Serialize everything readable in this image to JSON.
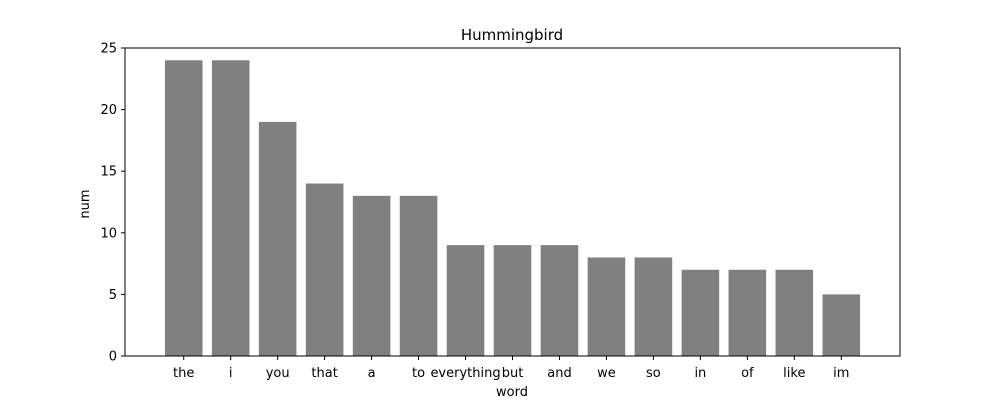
{
  "chart_data": {
    "type": "bar",
    "title": "Hummingbird",
    "xlabel": "word",
    "ylabel": "num",
    "categories": [
      "the",
      "i",
      "you",
      "that",
      "a",
      "to",
      "everything",
      "but",
      "and",
      "we",
      "so",
      "in",
      "of",
      "like",
      "im"
    ],
    "values": [
      24,
      24,
      19,
      14,
      13,
      13,
      9,
      9,
      9,
      8,
      8,
      7,
      7,
      7,
      5
    ],
    "ylim": [
      0,
      25
    ],
    "yticks": [
      0,
      5,
      10,
      15,
      20,
      25
    ],
    "grid": false,
    "legend": "none",
    "bar_color": "#808080"
  }
}
